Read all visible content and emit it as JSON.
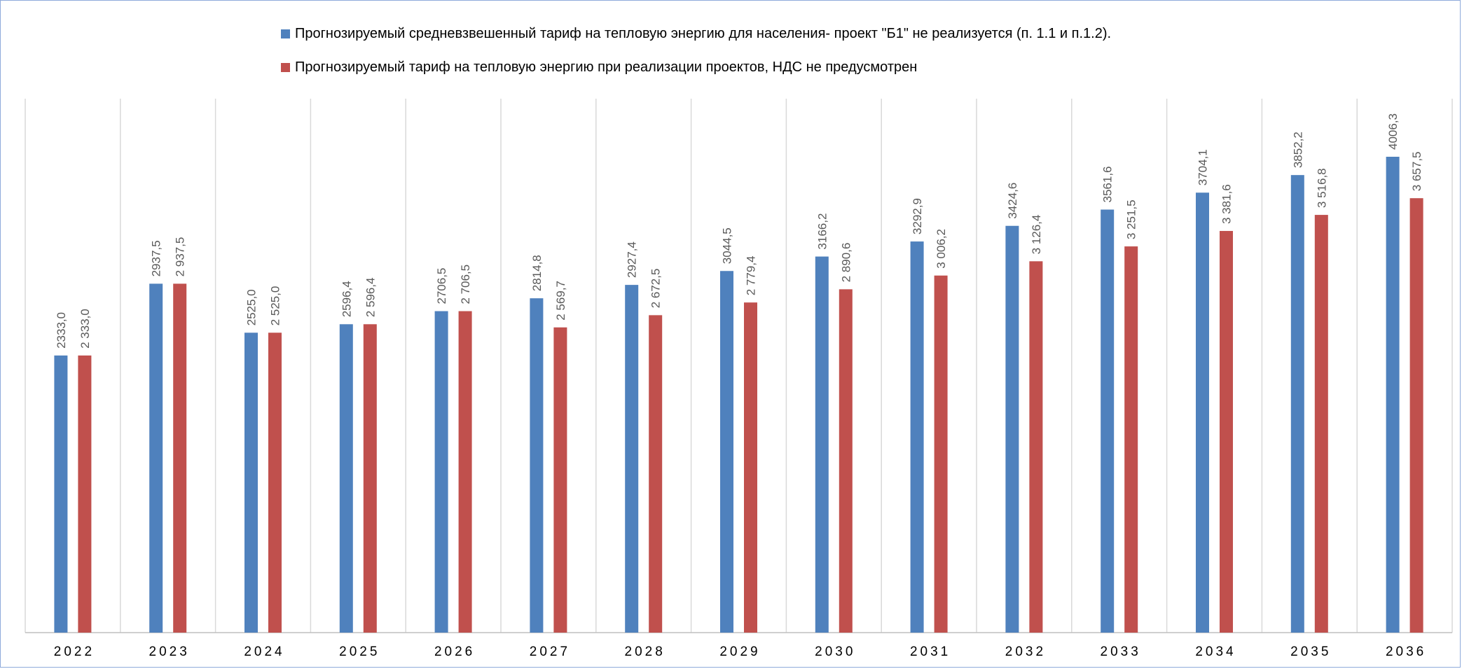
{
  "chart_data": {
    "type": "bar",
    "categories": [
      "2022",
      "2023",
      "2024",
      "2025",
      "2026",
      "2027",
      "2028",
      "2029",
      "2030",
      "2031",
      "2032",
      "2033",
      "2034",
      "2035",
      "2036"
    ],
    "series": [
      {
        "name": "Прогнозируемый средневзвешенный тариф  на тепловую энергию для населения- проект \"Б1\" не реализуется (п. 1.1 и п.1.2).",
        "color": "#4f81bd",
        "values": [
          2333.0,
          2937.5,
          2525.0,
          2596.4,
          2706.5,
          2814.8,
          2927.4,
          3044.5,
          3166.2,
          3292.9,
          3424.6,
          3561.6,
          3704.1,
          3852.2,
          4006.3
        ],
        "labels": [
          "2333,0",
          "2937,5",
          "2525,0",
          "2596,4",
          "2706,5",
          "2814,8",
          "2927,4",
          "3044,5",
          "3166,2",
          "3292,9",
          "3424,6",
          "3561,6",
          "3704,1",
          "3852,2",
          "4006,3"
        ]
      },
      {
        "name": "Прогнозируемый тариф на тепловую энергию при реализации проектов, НДС не предусмотрен",
        "color": "#c0504d",
        "values": [
          2333.0,
          2937.5,
          2525.0,
          2596.4,
          2706.5,
          2569.7,
          2672.5,
          2779.4,
          2890.6,
          3006.2,
          3126.4,
          3251.5,
          3381.6,
          3516.8,
          3657.5
        ],
        "labels": [
          "2 333,0",
          "2 937,5",
          "2 525,0",
          "2 596,4",
          "2 706,5",
          "2 569,7",
          "2 672,5",
          "2 779,4",
          "2 890,6",
          "3 006,2",
          "3 126,4",
          "3 251,5",
          "3 381,6",
          "3 516,8",
          "3 657,5"
        ]
      }
    ],
    "ylim": [
      0,
      4500
    ],
    "grid": "vertical",
    "legend_position": "top",
    "xlabel": "",
    "ylabel": ""
  }
}
